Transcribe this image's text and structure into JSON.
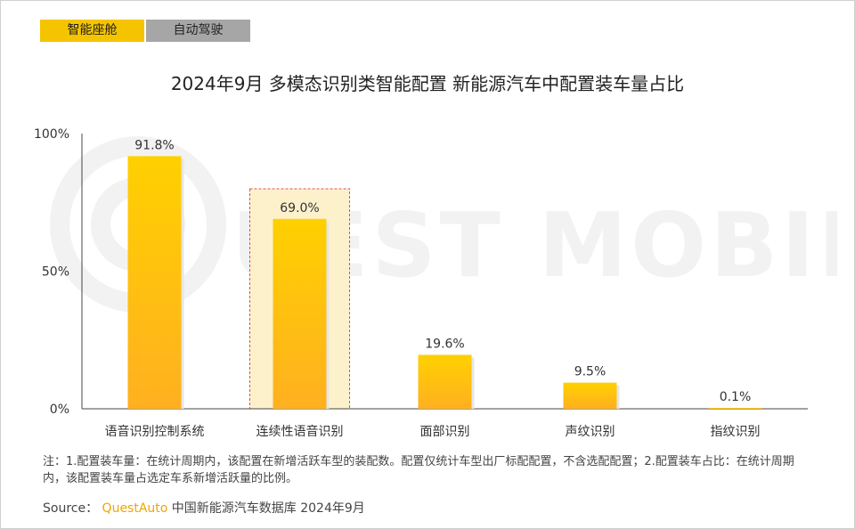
{
  "tabs": [
    {
      "label": "智能座舱",
      "active": true
    },
    {
      "label": "自动驾驶",
      "active": false
    }
  ],
  "colors": {
    "accent": "#f5c400",
    "bar_top": "#ffd000",
    "bar_bottom": "#ffb020",
    "highlight_fill": "#fdf1cc",
    "highlight_border": "#d9534f",
    "tab_inactive": "#a6a6a6",
    "brand": "#f0a500"
  },
  "watermark_text": "QUEST MOBILE",
  "chart_data": {
    "type": "bar",
    "title": "2024年9月 多模态识别类智能配置 新能源汽车中配置装车量占比",
    "xlabel": "",
    "ylabel": "",
    "categories": [
      "语音识别控制系统",
      "连续性语音识别",
      "面部识别",
      "声纹识别",
      "指纹识别"
    ],
    "values": [
      91.8,
      69.0,
      19.6,
      9.5,
      0.1
    ],
    "value_labels": [
      "91.8%",
      "69.0%",
      "19.6%",
      "9.5%",
      "0.1%"
    ],
    "ylim": [
      0,
      100
    ],
    "yticks": [
      0,
      50,
      100
    ],
    "ytick_labels": [
      "0%",
      "50%",
      "100%"
    ],
    "highlighted_category": "连续性语音识别",
    "grid": false
  },
  "footer": {
    "note": "注：1.配置装车量：在统计周期内，该配置在新增活跃车型的装配数。配置仅统计车型出厂标配配置，不含选配配置；2.配置装车占比：在统计周期内，该配置装车量占选定车系新增活跃量的比例。",
    "source_label": "Source：",
    "source_brand": "QuestAuto",
    "source_text": "中国新能源汽车数据库 2024年9月"
  }
}
